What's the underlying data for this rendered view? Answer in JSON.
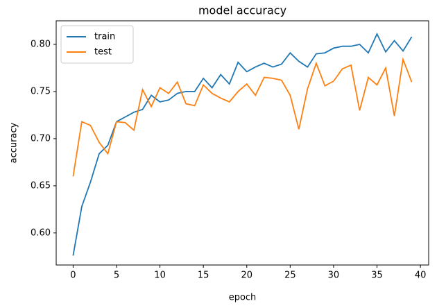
{
  "chart_data": {
    "type": "line",
    "title": "model accuracy",
    "x_label": "epoch",
    "y_label": "accuracy",
    "x": [
      0,
      1,
      2,
      3,
      4,
      5,
      6,
      7,
      8,
      9,
      10,
      11,
      12,
      13,
      14,
      15,
      16,
      17,
      18,
      19,
      20,
      21,
      22,
      23,
      24,
      25,
      26,
      27,
      28,
      29,
      30,
      31,
      32,
      33,
      34,
      35,
      36,
      37,
      38,
      39
    ],
    "series": [
      {
        "name": "train",
        "color": "#1f77b4",
        "values": [
          0.576,
          0.628,
          0.654,
          0.684,
          0.693,
          0.718,
          0.723,
          0.728,
          0.731,
          0.746,
          0.739,
          0.741,
          0.748,
          0.75,
          0.75,
          0.764,
          0.754,
          0.768,
          0.758,
          0.781,
          0.771,
          0.776,
          0.78,
          0.776,
          0.779,
          0.791,
          0.782,
          0.776,
          0.79,
          0.791,
          0.796,
          0.798,
          0.798,
          0.8,
          0.791,
          0.811,
          0.792,
          0.804,
          0.793,
          0.808
        ]
      },
      {
        "name": "test",
        "color": "#ff7f0e",
        "values": [
          0.66,
          0.718,
          0.714,
          0.696,
          0.684,
          0.718,
          0.717,
          0.709,
          0.752,
          0.734,
          0.754,
          0.748,
          0.76,
          0.737,
          0.735,
          0.757,
          0.748,
          0.743,
          0.739,
          0.75,
          0.758,
          0.746,
          0.765,
          0.764,
          0.762,
          0.746,
          0.71,
          0.753,
          0.78,
          0.756,
          0.761,
          0.774,
          0.778,
          0.73,
          0.765,
          0.757,
          0.775,
          0.724,
          0.784,
          0.76
        ]
      }
    ],
    "xlim": [
      -1.95,
      40.95
    ],
    "xticks": [
      0,
      5,
      10,
      15,
      20,
      25,
      30,
      35,
      40
    ],
    "ylim": [
      0.566,
      0.825
    ],
    "yticks": [
      {
        "value": 0.6,
        "label": "0.60"
      },
      0.65,
      {
        "value": 0.7,
        "label": "0.70"
      },
      0.75,
      {
        "value": 0.8,
        "label": "0.80"
      }
    ],
    "grid": false,
    "legend_position": "upper-left"
  }
}
